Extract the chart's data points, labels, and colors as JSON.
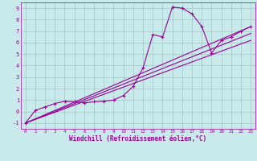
{
  "xlabel": "Windchill (Refroidissement éolien,°C)",
  "bg_color": "#c8eaea",
  "grid_color": "#aacccc",
  "line_color": "#990099",
  "xlim": [
    -0.5,
    23.5
  ],
  "ylim": [
    -1.5,
    9.5
  ],
  "xticks": [
    0,
    1,
    2,
    3,
    4,
    5,
    6,
    7,
    8,
    9,
    10,
    11,
    12,
    13,
    14,
    15,
    16,
    17,
    18,
    19,
    20,
    21,
    22,
    23
  ],
  "yticks": [
    -1,
    0,
    1,
    2,
    3,
    4,
    5,
    6,
    7,
    8,
    9
  ],
  "zigzag_x": [
    0,
    1,
    2,
    3,
    4,
    5,
    6,
    7,
    8,
    9,
    10,
    11,
    12,
    13,
    14,
    15,
    16,
    17,
    18,
    19,
    20,
    21,
    22,
    23
  ],
  "zigzag_y": [
    -1.0,
    0.1,
    0.4,
    0.7,
    0.9,
    0.85,
    0.75,
    0.85,
    0.9,
    1.0,
    1.4,
    2.2,
    3.8,
    6.7,
    6.5,
    9.1,
    9.0,
    8.5,
    7.4,
    5.1,
    6.2,
    6.5,
    7.0,
    7.4
  ],
  "line1_x": [
    0,
    23
  ],
  "line1_y": [
    -1.0,
    7.4
  ],
  "line2_x": [
    0,
    23
  ],
  "line2_y": [
    -1.0,
    6.8
  ],
  "line3_x": [
    0,
    23
  ],
  "line3_y": [
    -1.0,
    6.2
  ]
}
